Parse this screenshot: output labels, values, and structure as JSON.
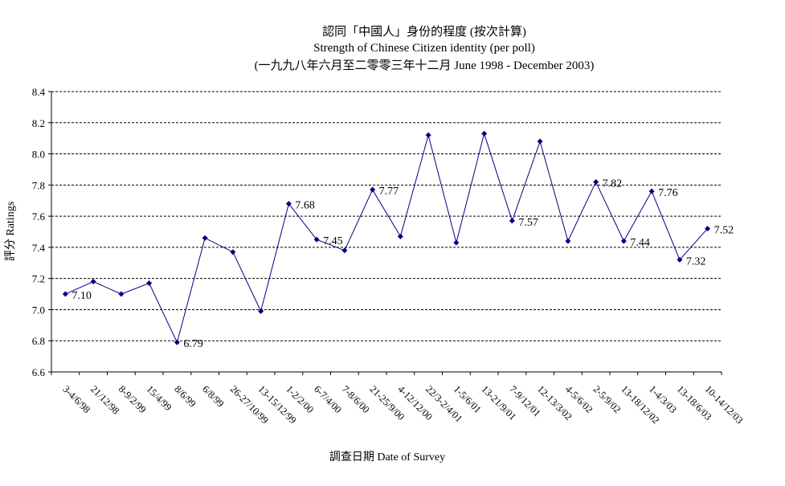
{
  "chart_data": {
    "type": "line",
    "title": "認同「中國人」身份的程度 (按次計算)",
    "subtitle": "Strength of Chinese Citizen identity (per poll)",
    "subtitle2": "(一九九八年六月至二零零三年十二月 June 1998 - December 2003)",
    "xlabel": "調查日期 Date of Survey",
    "ylabel": "評分 Ratings",
    "ylim": [
      6.6,
      8.4
    ],
    "yticks": [
      "6.6",
      "6.8",
      "7.0",
      "7.2",
      "7.4",
      "7.6",
      "7.8",
      "8.0",
      "8.2",
      "8.4"
    ],
    "grid": "horizontal dashed",
    "line_color": "#000080",
    "categories": [
      "3-4/6/98",
      "21/12/98",
      "8-9/2/99",
      "15/4/99",
      "8/6/99",
      "6/8/99",
      "26-27/10/99",
      "13-15/12/99",
      "1-2/2/00",
      "6-7/4/00",
      "7-8/6/00",
      "21-25/9/00",
      "4-12/12/00",
      "22/3-2/4/01",
      "1-5/6/01",
      "13-21/9/01",
      "7-9/12/01",
      "12-13/3/02",
      "4-5/6/02",
      "2-5/9/02",
      "13-18/12/02",
      "1-4/3/03",
      "13-18/6/03",
      "10-14/12/03"
    ],
    "values": [
      7.1,
      7.18,
      7.1,
      7.17,
      6.79,
      7.46,
      7.37,
      6.99,
      7.68,
      7.45,
      7.38,
      7.77,
      7.47,
      8.12,
      7.43,
      8.13,
      7.57,
      8.08,
      7.44,
      7.82,
      7.44,
      7.76,
      7.32,
      7.52
    ],
    "data_labels": {
      "0": "7.10",
      "4": "6.79",
      "8": "7.68",
      "9": "7.45",
      "11": "7.77",
      "16": "7.57",
      "19": "7.82",
      "20": "7.44",
      "21": "7.76",
      "22": "7.32",
      "23": "7.52"
    }
  }
}
